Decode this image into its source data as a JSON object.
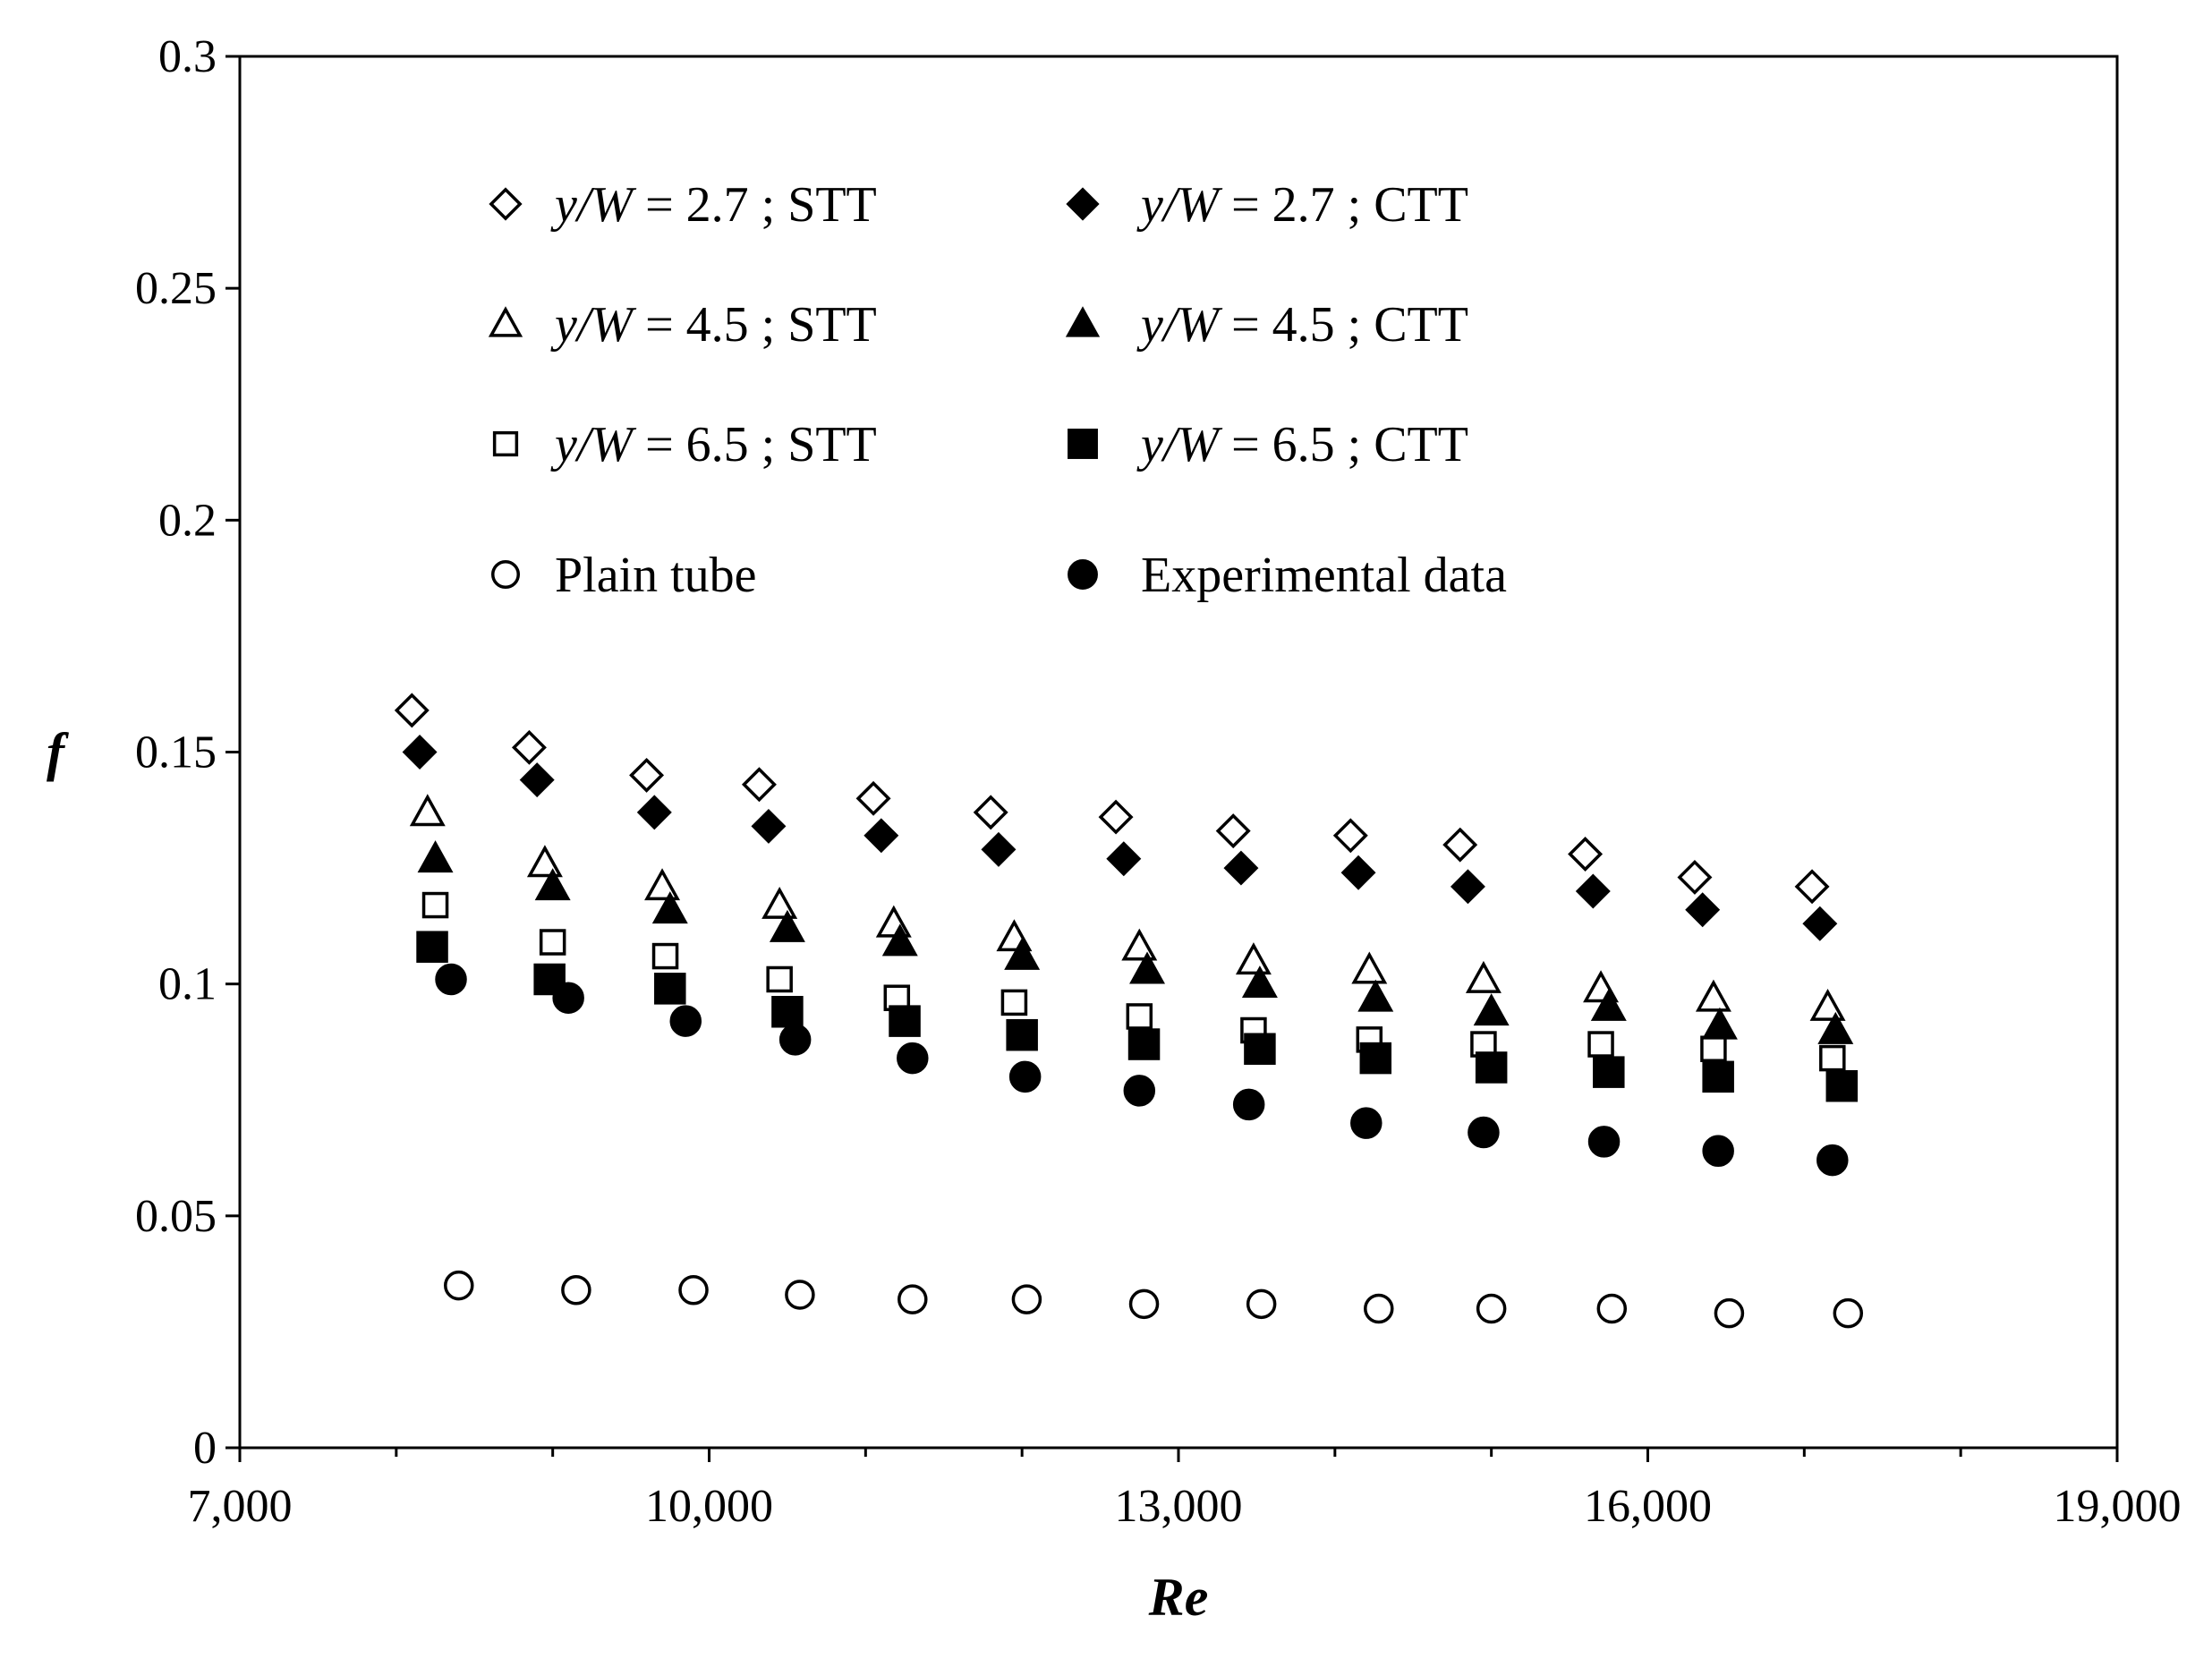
{
  "chart_data": {
    "type": "scatter",
    "title": "",
    "xlabel": "Re",
    "ylabel": "f",
    "xlim": [
      7000,
      19000
    ],
    "ylim": [
      0,
      0.3
    ],
    "x_ticks": [
      7000,
      10000,
      13000,
      16000,
      19000
    ],
    "x_tick_labels": [
      "7,000",
      "10,000",
      "13,000",
      "16,000",
      "19,000"
    ],
    "x_minor_step": 1000,
    "y_ticks": [
      0,
      0.05,
      0.1,
      0.15,
      0.2,
      0.25,
      0.3
    ],
    "y_tick_labels": [
      "0",
      "0.05",
      "0.1",
      "0.15",
      "0.2",
      "0.25",
      "0.3"
    ],
    "grid": false,
    "legend_position": "top-left inside",
    "series": [
      {
        "name": "y/W = 2.7 ; STT",
        "legend_prefix": "y/W",
        "legend_suffix": " = 2.7 ;  STT",
        "marker": "diamond-open",
        "x": [
          8100,
          8850,
          9600,
          10320,
          11050,
          11800,
          12600,
          13350,
          14100,
          14800,
          15600,
          16300,
          17050
        ],
        "y": [
          0.159,
          0.151,
          0.145,
          0.143,
          0.14,
          0.137,
          0.136,
          0.133,
          0.132,
          0.13,
          0.128,
          0.123,
          0.121
        ]
      },
      {
        "name": "y/W = 2.7 ; CTT",
        "legend_prefix": "y/W",
        "legend_suffix": " = 2.7 ;  CTT",
        "marker": "diamond-filled",
        "x": [
          8150,
          8900,
          9650,
          10380,
          11100,
          11850,
          12650,
          13400,
          14150,
          14850,
          15650,
          16350,
          17100
        ],
        "y": [
          0.15,
          0.144,
          0.137,
          0.134,
          0.132,
          0.129,
          0.127,
          0.125,
          0.124,
          0.121,
          0.12,
          0.116,
          0.113
        ]
      },
      {
        "name": "y/W = 4.5 ; STT",
        "legend_prefix": "y/W",
        "legend_suffix": " = 4.5 ;  STT",
        "marker": "triangle-open",
        "x": [
          8200,
          8950,
          9700,
          10450,
          11180,
          11950,
          12750,
          13480,
          14220,
          14950,
          15700,
          16420,
          17150
        ],
        "y": [
          0.137,
          0.126,
          0.121,
          0.117,
          0.113,
          0.11,
          0.108,
          0.105,
          0.103,
          0.101,
          0.099,
          0.097,
          0.095
        ]
      },
      {
        "name": "y/W = 4.5 ; CTT",
        "legend_prefix": "y/W",
        "legend_suffix": " = 4.5 ;  CTT",
        "marker": "triangle-filled",
        "x": [
          8250,
          9000,
          9750,
          10500,
          11220,
          12000,
          12800,
          13520,
          14260,
          15000,
          15750,
          16460,
          17200
        ],
        "y": [
          0.127,
          0.121,
          0.116,
          0.112,
          0.109,
          0.106,
          0.103,
          0.1,
          0.097,
          0.094,
          0.095,
          0.091,
          0.09
        ]
      },
      {
        "name": "y/W = 6.5 ; STT",
        "legend_prefix": "y/W",
        "legend_suffix": " = 6.5 ;  STT",
        "marker": "square-open",
        "x": [
          8250,
          9000,
          9720,
          10450,
          11200,
          11950,
          12750,
          13480,
          14220,
          14950,
          15700,
          16420,
          17180
        ],
        "y": [
          0.117,
          0.109,
          0.106,
          0.101,
          0.097,
          0.096,
          0.093,
          0.09,
          0.088,
          0.087,
          0.087,
          0.086,
          0.084
        ]
      },
      {
        "name": "y/W = 6.5 ; CTT",
        "legend_prefix": "y/W",
        "legend_suffix": " = 6.5 ;  CTT",
        "marker": "square-filled",
        "x": [
          8230,
          8980,
          9750,
          10500,
          11250,
          12000,
          12780,
          13520,
          14260,
          15000,
          15750,
          16450,
          17240
        ],
        "y": [
          0.108,
          0.101,
          0.099,
          0.094,
          0.092,
          0.089,
          0.087,
          0.086,
          0.084,
          0.082,
          0.081,
          0.08,
          0.078
        ]
      },
      {
        "name": "Plain tube",
        "legend_prefix": "",
        "legend_suffix": "Plain tube",
        "marker": "circle-open",
        "x": [
          8400,
          9150,
          9900,
          10580,
          11300,
          12030,
          12780,
          13530,
          14280,
          15000,
          15770,
          16520,
          17280
        ],
        "y": [
          0.035,
          0.034,
          0.034,
          0.033,
          0.032,
          0.032,
          0.031,
          0.031,
          0.03,
          0.03,
          0.03,
          0.029,
          0.029
        ]
      },
      {
        "name": "Experimental data",
        "legend_prefix": "",
        "legend_suffix": "Experimental data",
        "marker": "circle-filled",
        "x": [
          8350,
          9100,
          9850,
          10550,
          11300,
          12020,
          12750,
          13450,
          14200,
          14950,
          15720,
          16450,
          17180
        ],
        "y": [
          0.101,
          0.097,
          0.092,
          0.088,
          0.084,
          0.08,
          0.077,
          0.074,
          0.07,
          0.068,
          0.066,
          0.064,
          0.062
        ]
      }
    ]
  }
}
